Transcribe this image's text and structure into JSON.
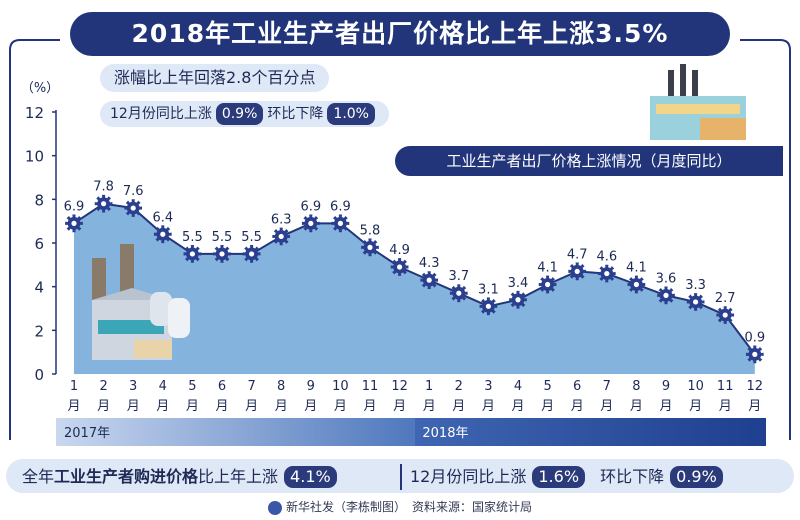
{
  "header": {
    "title": "2018年工业生产者出厂价格比上年上涨3.5%",
    "subtitle": "涨幅比上年回落2.8个百分点",
    "dec_yoy_label": "12月份同比上涨",
    "dec_yoy_value": "0.9%",
    "mom_label": "环比下降",
    "mom_value": "1.0%"
  },
  "chart_caption": "工业生产者出厂价格上涨情况（月度同比）",
  "colors": {
    "navy": "#22357a",
    "area": "#6fa6d8",
    "light": "#dfe8f6",
    "gear": "#2b3f8f"
  },
  "chart_data": {
    "type": "area",
    "ylabel": "（%）",
    "ylim": [
      0,
      12
    ],
    "yticks": [
      "0",
      "2",
      "4",
      "6",
      "8",
      "10",
      "12"
    ],
    "categories": [
      "1月",
      "2月",
      "3月",
      "4月",
      "5月",
      "6月",
      "7月",
      "8月",
      "9月",
      "10月",
      "11月",
      "12月",
      "1月",
      "2月",
      "3月",
      "4月",
      "5月",
      "6月",
      "7月",
      "8月",
      "9月",
      "10月",
      "11月",
      "12月"
    ],
    "month_numbers": [
      "1",
      "2",
      "3",
      "4",
      "5",
      "6",
      "7",
      "8",
      "9",
      "10",
      "11",
      "12",
      "1",
      "2",
      "3",
      "4",
      "5",
      "6",
      "7",
      "8",
      "9",
      "10",
      "11",
      "12"
    ],
    "month_suffix": "月",
    "years": [
      "2017年",
      "2018年"
    ],
    "values": [
      6.9,
      7.8,
      7.6,
      6.4,
      5.5,
      5.5,
      5.5,
      6.3,
      6.9,
      6.9,
      5.8,
      4.9,
      4.3,
      3.7,
      3.1,
      3.4,
      4.1,
      4.7,
      4.6,
      4.1,
      3.6,
      3.3,
      2.7,
      0.9
    ],
    "value_labels": [
      "6.9",
      "7.8",
      "7.6",
      "6.4",
      "5.5",
      "5.5",
      "5.5",
      "6.3",
      "6.9",
      "6.9",
      "5.8",
      "4.9",
      "4.3",
      "3.7",
      "3.1",
      "3.4",
      "4.1",
      "4.7",
      "4.6",
      "4.1",
      "3.6",
      "3.3",
      "2.7",
      "0.9"
    ]
  },
  "bottom": {
    "left_prefix": "全年",
    "left_bold": "工业生产者购进价格",
    "left_suffix": "比上年上涨",
    "left_value": "4.1%",
    "right_label": "12月份同比上涨",
    "right_value": "1.6%",
    "right_label2": "环比下降",
    "right_value2": "0.9%"
  },
  "footer": {
    "credit": "新华社发（李栋制图）",
    "source": "资料来源：国家统计局"
  }
}
